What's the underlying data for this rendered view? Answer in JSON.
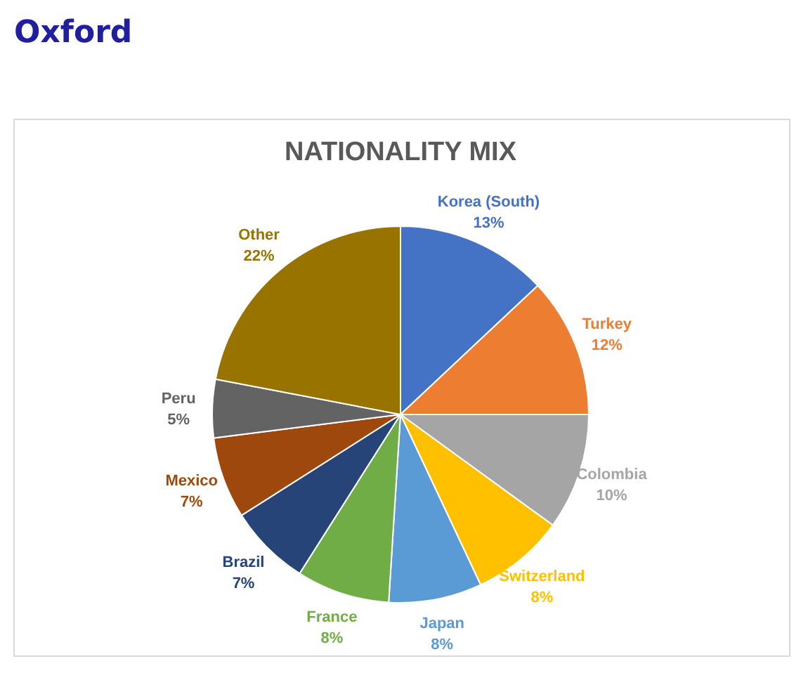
{
  "chart_data": {
    "type": "pie",
    "title": "NATIONALITY MIX",
    "annotations": [
      "Oxford"
    ],
    "categories": [
      "Korea (South)",
      "Turkey",
      "Colombia",
      "Switzerland",
      "Japan",
      "France",
      "Brazil",
      "Mexico",
      "Peru",
      "Other"
    ],
    "values": [
      13,
      12,
      10,
      8,
      8,
      8,
      7,
      7,
      5,
      22
    ],
    "colors": [
      "#4472c4",
      "#ed7d31",
      "#a5a5a5",
      "#ffc000",
      "#5b9bd5",
      "#70ad47",
      "#264478",
      "#9e480e",
      "#636363",
      "#997300"
    ],
    "value_labels": [
      "13%",
      "12%",
      "10%",
      "8%",
      "8%",
      "8%",
      "7%",
      "7%",
      "5%",
      "22%"
    ]
  }
}
